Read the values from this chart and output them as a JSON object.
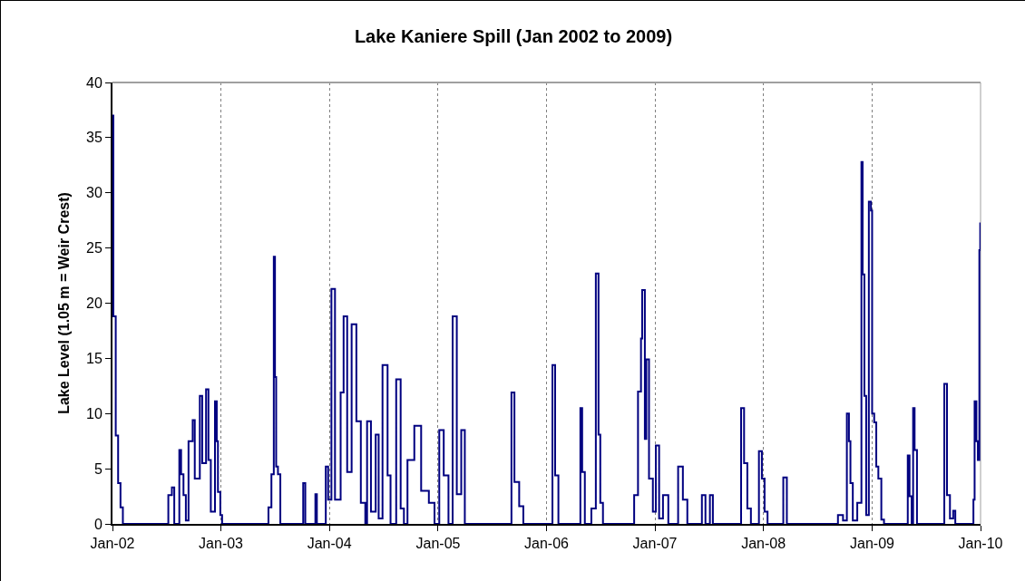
{
  "chart_data": {
    "type": "step",
    "title": "Lake Kaniere Spill (Jan 2002 to 2009)",
    "ylabel": "Lake Level (1.05 m = Weir Crest)",
    "x": [
      "2002-01-01",
      "2002-01-04",
      "2002-01-12",
      "2002-01-20",
      "2002-01-28",
      "2002-02-05",
      "2002-07-08",
      "2002-07-20",
      "2002-07-28",
      "2002-08-14",
      "2002-08-20",
      "2002-08-28",
      "2002-09-05",
      "2002-09-14",
      "2002-09-28",
      "2002-10-05",
      "2002-10-22",
      "2002-10-30",
      "2002-11-12",
      "2002-11-20",
      "2002-11-28",
      "2002-12-12",
      "2002-12-18",
      "2002-12-22",
      "2002-12-30",
      "2003-01-05",
      "2003-06-10",
      "2003-06-20",
      "2003-06-28",
      "2003-07-02",
      "2003-07-06",
      "2003-07-12",
      "2003-07-20",
      "2003-10-05",
      "2003-10-12",
      "2003-11-15",
      "2003-11-20",
      "2003-12-20",
      "2003-12-28",
      "2004-01-08",
      "2004-01-20",
      "2004-02-08",
      "2004-02-18",
      "2004-03-01",
      "2004-03-16",
      "2004-04-01",
      "2004-04-16",
      "2004-05-01",
      "2004-05-07",
      "2004-05-20",
      "2004-06-05",
      "2004-06-15",
      "2004-06-28",
      "2004-07-15",
      "2004-07-25",
      "2004-08-13",
      "2004-08-28",
      "2004-09-08",
      "2004-09-20",
      "2004-10-13",
      "2004-11-05",
      "2004-12-01",
      "2004-12-20",
      "2005-01-05",
      "2005-01-20",
      "2005-02-05",
      "2005-02-19",
      "2005-03-05",
      "2005-03-20",
      "2005-04-01",
      "2005-09-05",
      "2005-09-15",
      "2005-10-01",
      "2005-10-15",
      "2006-01-21",
      "2006-01-30",
      "2006-02-10",
      "2006-04-25",
      "2006-05-01",
      "2006-05-10",
      "2006-06-01",
      "2006-06-16",
      "2006-06-25",
      "2006-07-01",
      "2006-07-10",
      "2006-10-23",
      "2006-11-05",
      "2006-11-15",
      "2006-11-19",
      "2006-11-28",
      "2006-12-03",
      "2006-12-12",
      "2006-12-25",
      "2007-01-04",
      "2007-01-15",
      "2007-01-28",
      "2007-02-15",
      "2007-03-20",
      "2007-04-05",
      "2007-04-20",
      "2007-06-08",
      "2007-06-20",
      "2007-07-05",
      "2007-07-15",
      "2007-10-18",
      "2007-10-28",
      "2007-11-08",
      "2007-11-20",
      "2007-12-17",
      "2007-12-27",
      "2008-01-05",
      "2008-01-15",
      "2008-03-08",
      "2008-03-20",
      "2008-09-08",
      "2008-09-25",
      "2008-10-08",
      "2008-10-15",
      "2008-10-20",
      "2008-10-28",
      "2008-11-12",
      "2008-11-26",
      "2008-11-30",
      "2008-12-06",
      "2008-12-12",
      "2008-12-21",
      "2008-12-28",
      "2009-01-01",
      "2009-01-08",
      "2009-01-15",
      "2009-01-22",
      "2009-02-01",
      "2009-02-10",
      "2009-05-01",
      "2009-05-07",
      "2009-05-14",
      "2009-05-19",
      "2009-05-24",
      "2009-06-01",
      "2009-09-01",
      "2009-09-10",
      "2009-09-20",
      "2009-10-01",
      "2009-10-08",
      "2009-12-08",
      "2009-12-12",
      "2009-12-18",
      "2009-12-23",
      "2009-12-28",
      "2009-12-31"
    ],
    "series": [
      {
        "color": "#000080",
        "values": [
          37,
          18.8,
          8,
          3.7,
          1.5,
          0,
          2.6,
          3.3,
          0,
          6.7,
          4.5,
          2.6,
          0.3,
          7.5,
          9.4,
          4.1,
          11.6,
          5.5,
          12.2,
          5.8,
          1.1,
          11.1,
          7.5,
          2.9,
          0.8,
          0,
          1.5,
          4.5,
          24.2,
          13.3,
          5.2,
          4.5,
          0,
          3.7,
          0,
          2.7,
          0,
          5.2,
          2.2,
          21.3,
          2.2,
          11.9,
          18.8,
          4.7,
          18.1,
          9.3,
          1.9,
          0,
          9.3,
          1.1,
          8.1,
          0.5,
          14.4,
          4.4,
          0,
          13.1,
          1.4,
          0,
          5.8,
          8.9,
          3,
          1.9,
          0,
          8.5,
          4.4,
          0,
          18.8,
          2.7,
          8.5,
          0,
          11.9,
          3.8,
          1.6,
          0,
          14.4,
          4.4,
          0,
          10.5,
          4.7,
          0,
          1.4,
          22.7,
          8.1,
          1.9,
          0,
          2.6,
          12,
          16.8,
          21.2,
          7.7,
          14.9,
          4.1,
          1.1,
          7.1,
          0.5,
          2.6,
          0,
          5.2,
          2.2,
          0,
          2.6,
          0,
          2.6,
          0,
          10.5,
          5.5,
          1.4,
          0,
          6.6,
          4.1,
          1.1,
          0,
          4.2,
          0,
          0.8,
          0.3,
          10,
          7.5,
          3.7,
          0.3,
          1.9,
          32.8,
          22.6,
          11.6,
          0.8,
          29.2,
          28.4,
          10,
          9.2,
          5.2,
          4.1,
          0.4,
          0,
          6.2,
          2.5,
          0,
          10.5,
          6.7,
          0,
          12.7,
          2.6,
          0.5,
          1.2,
          0,
          2.2,
          11.1,
          7.5,
          5.8,
          24.8,
          27.3
        ]
      }
    ],
    "xlim": [
      "2002-01-01",
      "2010-01-01"
    ],
    "xticks": [
      {
        "value": "2002-01-01",
        "label": "Jan-02"
      },
      {
        "value": "2003-01-01",
        "label": "Jan-03"
      },
      {
        "value": "2004-01-01",
        "label": "Jan-04"
      },
      {
        "value": "2005-01-01",
        "label": "Jan-05"
      },
      {
        "value": "2006-01-01",
        "label": "Jan-06"
      },
      {
        "value": "2007-01-01",
        "label": "Jan-07"
      },
      {
        "value": "2008-01-01",
        "label": "Jan-08"
      },
      {
        "value": "2009-01-01",
        "label": "Jan-09"
      },
      {
        "value": "2010-01-01",
        "label": "Jan-10"
      }
    ],
    "ylim": [
      0,
      40
    ],
    "yticks": [
      0,
      5,
      10,
      15,
      20,
      25,
      30,
      35,
      40
    ],
    "grid": "x"
  }
}
